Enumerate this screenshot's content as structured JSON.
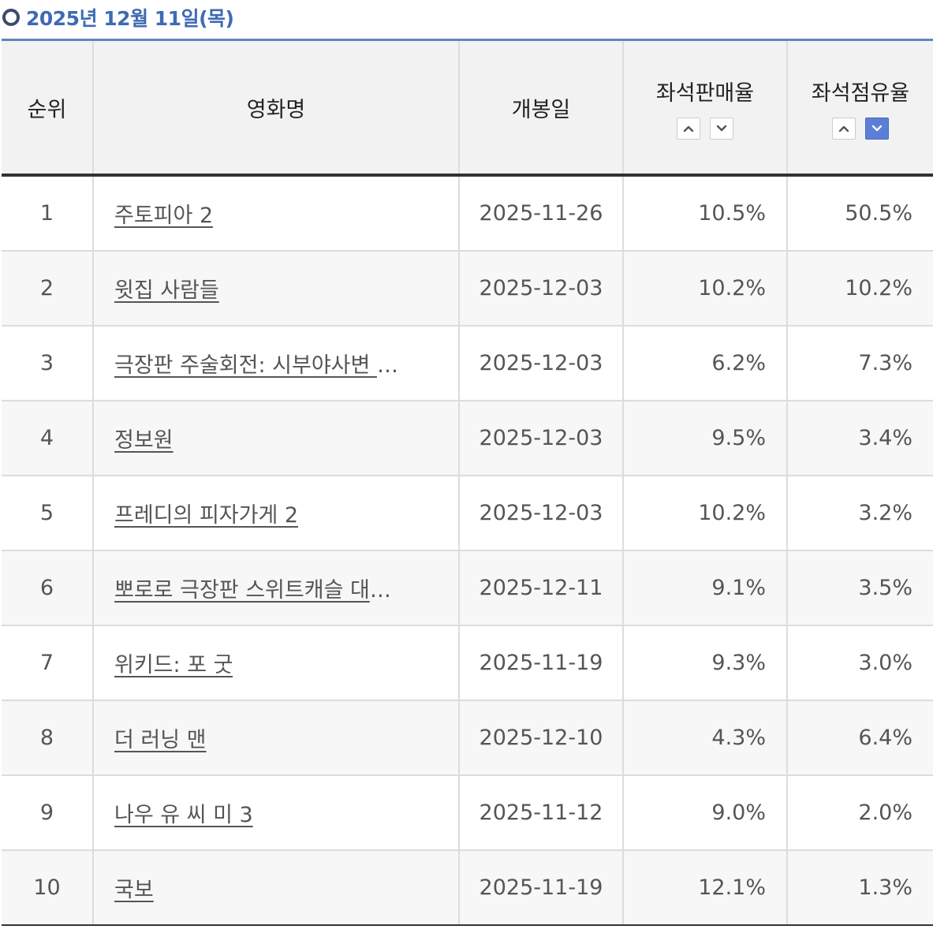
{
  "header": {
    "date": "2025년 12월 11일(목)"
  },
  "table": {
    "columns": {
      "rank": "순위",
      "title": "영화명",
      "release": "개봉일",
      "seat_sales": "좌석판매율",
      "seat_share": "좌석점유율"
    },
    "sort": {
      "seat_sales_up": "chevron-up-icon",
      "seat_sales_down": "chevron-down-icon",
      "seat_share_up": "chevron-up-icon",
      "seat_share_down": "chevron-down-icon",
      "active": "seat_share_down",
      "active_color": "#5b7fd6"
    },
    "rows": [
      {
        "rank": "1",
        "title": "주토피아 2",
        "release": "2025-11-26",
        "seat_sales": "10.5%",
        "seat_share": "50.5%"
      },
      {
        "rank": "2",
        "title": "윗집 사람들",
        "release": "2025-12-03",
        "seat_sales": "10.2%",
        "seat_share": "10.2%"
      },
      {
        "rank": "3",
        "title": "극장판 주술회전: 시부야사변 X…",
        "release": "2025-12-03",
        "seat_sales": "6.2%",
        "seat_share": "7.3%"
      },
      {
        "rank": "4",
        "title": "정보원",
        "release": "2025-12-03",
        "seat_sales": "9.5%",
        "seat_share": "3.4%"
      },
      {
        "rank": "5",
        "title": "프레디의 피자가게 2",
        "release": "2025-12-03",
        "seat_sales": "10.2%",
        "seat_share": "3.2%"
      },
      {
        "rank": "6",
        "title": "뽀로로 극장판 스위트캐슬 대모험",
        "release": "2025-12-11",
        "seat_sales": "9.1%",
        "seat_share": "3.5%"
      },
      {
        "rank": "7",
        "title": "위키드: 포 굿",
        "release": "2025-11-19",
        "seat_sales": "9.3%",
        "seat_share": "3.0%"
      },
      {
        "rank": "8",
        "title": "더 러닝 맨",
        "release": "2025-12-10",
        "seat_sales": "4.3%",
        "seat_share": "6.4%"
      },
      {
        "rank": "9",
        "title": "나우 유 씨 미 3",
        "release": "2025-11-12",
        "seat_sales": "9.0%",
        "seat_share": "2.0%"
      },
      {
        "rank": "10",
        "title": "국보",
        "release": "2025-11-19",
        "seat_sales": "12.1%",
        "seat_share": "1.3%"
      }
    ]
  }
}
